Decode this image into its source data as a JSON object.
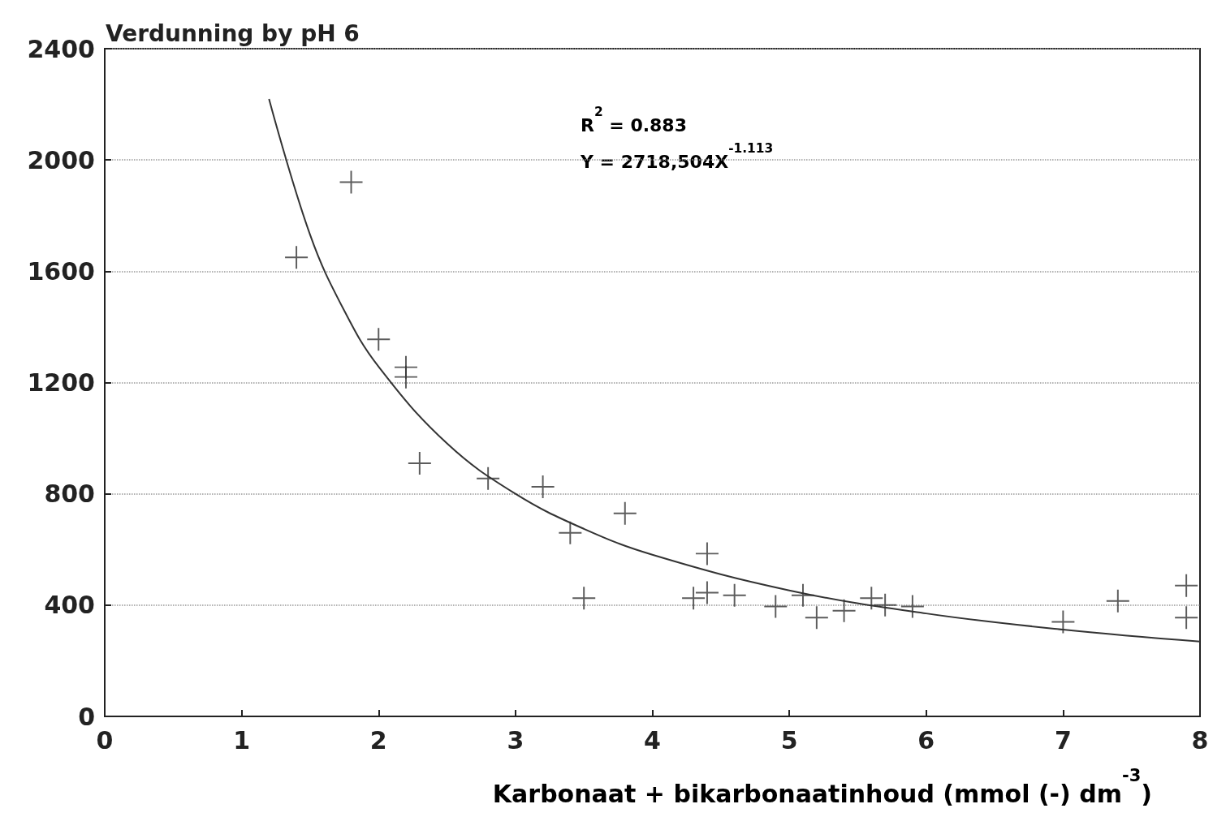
{
  "chart_data": {
    "type": "scatter",
    "title": "Verdunning by pH 6",
    "xlabel": "Karbonaat + bikarbonaatinhoud (mmol (-) dm$^{-3}$)",
    "xlim": [
      0,
      8
    ],
    "xticks": [
      0,
      1,
      2,
      3,
      4,
      5,
      6,
      7,
      8
    ],
    "ylim": [
      0,
      2400
    ],
    "yticks": [
      0,
      400,
      800,
      1200,
      1600,
      2000,
      2400
    ],
    "grid": "y",
    "marker": "cross",
    "line_style": "solid",
    "annotations": [
      "R$^{2}$ = 0.883",
      "Y = 2718,504X$^{-1.113}$"
    ],
    "series": [
      {
        "color": "#333333",
        "x": [
          1.4,
          1.8,
          2.0,
          2.2,
          2.2,
          2.3,
          2.8,
          3.2,
          3.4,
          3.5,
          3.8,
          4.3,
          4.4,
          4.4,
          4.6,
          4.9,
          5.1,
          5.2,
          5.4,
          5.6,
          5.7,
          5.9,
          7.0,
          7.4,
          7.9,
          7.9
        ],
        "values": [
          1650,
          1920,
          1355,
          1255,
          1220,
          910,
          855,
          825,
          660,
          425,
          730,
          425,
          585,
          445,
          435,
          395,
          435,
          355,
          380,
          425,
          400,
          395,
          340,
          415,
          470,
          355
        ]
      },
      {
        "type": "line",
        "marker": "none",
        "color": "#333333",
        "x": [
          1.2,
          1.5,
          1.75,
          2,
          2.5,
          3,
          3.5,
          4,
          5,
          6,
          7,
          8
        ],
        "values": [
          2219,
          1731,
          1458,
          1257,
          981,
          800,
          674,
          581,
          453,
          370,
          312,
          269
        ]
      }
    ]
  }
}
